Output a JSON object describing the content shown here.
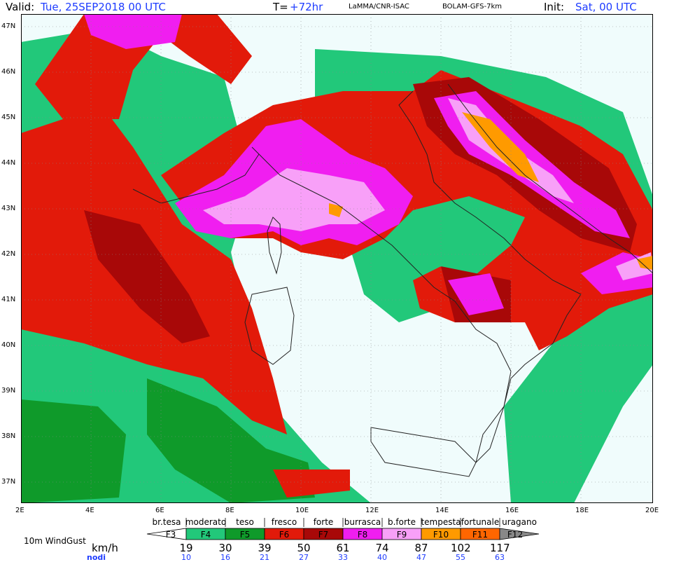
{
  "header": {
    "valid_label": "Valid:",
    "valid_value": "Tue, 25SEP2018  00 UTC",
    "t_label": "T=",
    "t_value": "+72hr",
    "org": "LaMMA/CNR-ISAC",
    "model": "BOLAM-GFS-7km",
    "init_label": "Init:",
    "init_value": "Sat, 00 UTC"
  },
  "map": {
    "lat_labels": [
      "47N",
      "46N",
      "45N",
      "44N",
      "43N",
      "42N",
      "41N",
      "40N",
      "39N",
      "38N",
      "37N"
    ],
    "lon_labels": [
      "2E",
      "4E",
      "6E",
      "8E",
      "10E",
      "12E",
      "14E",
      "16E",
      "18E",
      "20E"
    ],
    "colors": {
      "sea_calm": "#f0fcfc",
      "f4": "#22c87a",
      "f5": "#0f9a2a",
      "f6": "#e21a0a",
      "f7": "#a80808",
      "f8": "#f01ef0",
      "f9": "#f8a0f8",
      "f10": "#ff9a00",
      "coast": "#222222",
      "grid": "#888888"
    }
  },
  "legend": {
    "title": "10m WindGust",
    "unit_kmh": "km/h",
    "unit_nodi": "nodi",
    "classes": [
      {
        "name": "br.tesa",
        "code": "F3",
        "color": "#ffffff",
        "text": "#000"
      },
      {
        "name": "moderato",
        "code": "F4",
        "color": "#22c87a",
        "text": "#000"
      },
      {
        "name": "teso",
        "code": "F5",
        "color": "#0f9a2a",
        "text": "#000"
      },
      {
        "name": "fresco",
        "code": "F6",
        "color": "#e21a0a",
        "text": "#000"
      },
      {
        "name": "forte",
        "code": "F7",
        "color": "#a80808",
        "text": "#000"
      },
      {
        "name": "burrasca",
        "code": "F8",
        "color": "#f01ef0",
        "text": "#000"
      },
      {
        "name": "b.forte",
        "code": "F9",
        "color": "#f8a0f8",
        "text": "#000"
      },
      {
        "name": "tempesta",
        "code": "F10",
        "color": "#ff9a00",
        "text": "#000"
      },
      {
        "name": "fortunale",
        "code": "F11",
        "color": "#ff6600",
        "text": "#000"
      },
      {
        "name": "uragano",
        "code": "F12",
        "color": "#888888",
        "text": "#000"
      }
    ],
    "kmh_values": [
      "19",
      "30",
      "39",
      "50",
      "61",
      "74",
      "87",
      "102",
      "117"
    ],
    "nodi_values": [
      "10",
      "16",
      "21",
      "27",
      "33",
      "40",
      "47",
      "55",
      "63"
    ]
  }
}
